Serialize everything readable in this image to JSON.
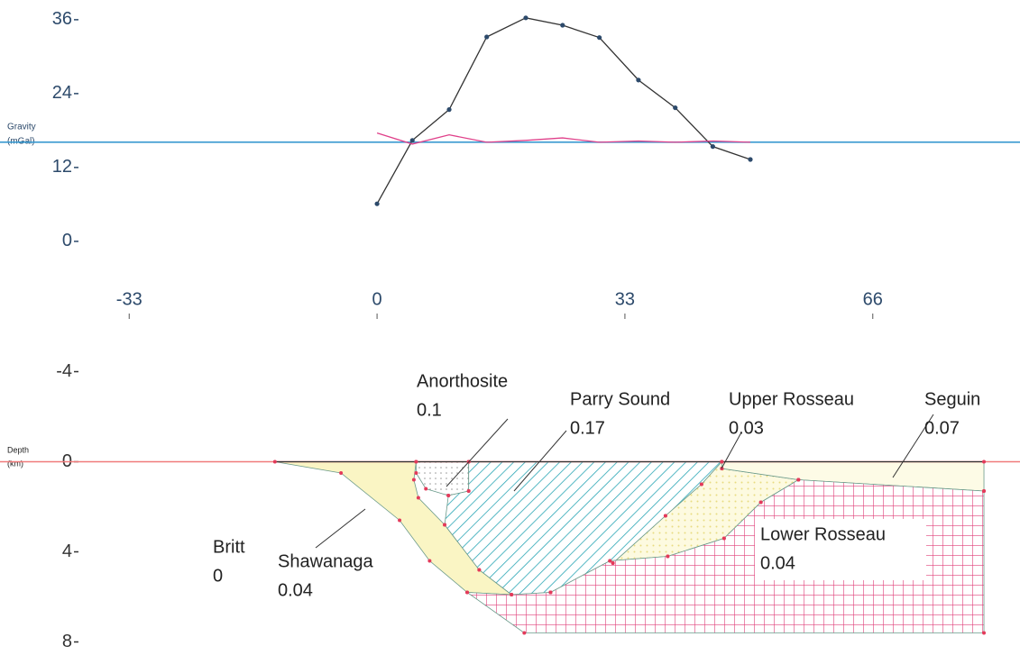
{
  "chart_data": [
    {
      "type": "line",
      "ylabel": [
        "Gravity",
        "(mGal)"
      ],
      "xlim": [
        -50.2,
        85.6
      ],
      "xticks": [
        -33,
        0,
        33,
        66
      ],
      "ylim": [
        -4.7,
        39.2
      ],
      "yticks": [
        0,
        12,
        24,
        36
      ],
      "hlines": [
        16.1
      ],
      "hline_color": "#3a9ad0",
      "series": [
        {
          "color": "#333333",
          "markers": true,
          "x": [
            0,
            4.7,
            9.6,
            14.6,
            19.8,
            24.7,
            29.6,
            34.8,
            39.7,
            44.7,
            49.7
          ],
          "values": [
            6.1,
            16.4,
            21.4,
            33.2,
            36.3,
            35.1,
            33.1,
            26.2,
            21.7,
            15.4,
            13.3
          ]
        },
        {
          "color": "#e0408a",
          "markers": false,
          "x": [
            0,
            4.7,
            9.6,
            14.6,
            19.8,
            24.7,
            29.6,
            34.8,
            39.7,
            44.7,
            49.7
          ],
          "values": [
            17.6,
            15.8,
            17.3,
            16.1,
            16.4,
            16.8,
            16.1,
            16.3,
            16.1,
            16.3,
            16.1
          ]
        }
      ]
    },
    {
      "type": "section",
      "ylabel": [
        "Depth",
        "(km)"
      ],
      "xlim": [
        -50.2,
        85.6
      ],
      "ylim": [
        8.3,
        -4.5
      ],
      "yticks": [
        -4,
        0,
        4,
        8
      ],
      "bodies": [
        {
          "name": "Britt",
          "density": 0
        },
        {
          "name": "Shawanaga",
          "density": 0.04,
          "color": "#faf5c4",
          "x": [
            -13.6,
            5.2,
            4.9,
            5.5,
            9,
            13.6,
            17.9,
            12,
            7,
            3,
            -4.8
          ],
          "z": [
            0,
            0,
            0.8,
            1.6,
            2.8,
            4.8,
            5.9,
            5.8,
            4.4,
            2.6,
            0.5
          ]
        },
        {
          "name": "Anorthosite",
          "density": 0.1,
          "color": "#f4f4f4",
          "x": [
            5.2,
            12.2,
            12.2,
            9.5,
            6.5,
            5.2
          ],
          "z": [
            0,
            0,
            1.3,
            1.5,
            1.2,
            0.5
          ]
        },
        {
          "name": "Parry Sound",
          "density": 0.17,
          "color": "#2aa6b5",
          "x": [
            12.2,
            45.9,
            43.2,
            38.4,
            31.4,
            23.1,
            17.9,
            13.6,
            9,
            9.5,
            12.2
          ],
          "z": [
            0,
            0,
            1.0,
            2.4,
            4.5,
            5.8,
            5.9,
            4.8,
            2.8,
            1.5,
            1.3
          ]
        },
        {
          "name": "Upper Rosseau",
          "density": 0.03,
          "color": "#f2ea9a",
          "x": [
            45.9,
            45.9,
            56.1,
            51.1,
            46.2,
            38.7,
            31,
            23.1,
            31.4,
            38.4,
            43.2
          ],
          "z": [
            0,
            0.3,
            0.8,
            1.8,
            3.4,
            4.2,
            4.4,
            5.8,
            4.5,
            2.4,
            1.0
          ]
        },
        {
          "name": "Seguin",
          "density": 0.07,
          "color": "#fdfbe6",
          "x": [
            45.9,
            80.8,
            80.8,
            56.1,
            45.9
          ],
          "z": [
            0,
            0,
            1.3,
            0.8,
            0.3
          ]
        },
        {
          "name": "Lower Rosseau",
          "density": 0.04,
          "color": "#e0407a",
          "x": [
            80.8,
            56.1,
            51.1,
            46.2,
            38.7,
            31,
            23.1,
            17.9,
            12,
            19.6,
            80.8
          ],
          "z": [
            1.3,
            0.8,
            1.8,
            3.4,
            4.2,
            4.4,
            5.8,
            5.9,
            5.8,
            7.6,
            7.6
          ]
        }
      ]
    }
  ]
}
